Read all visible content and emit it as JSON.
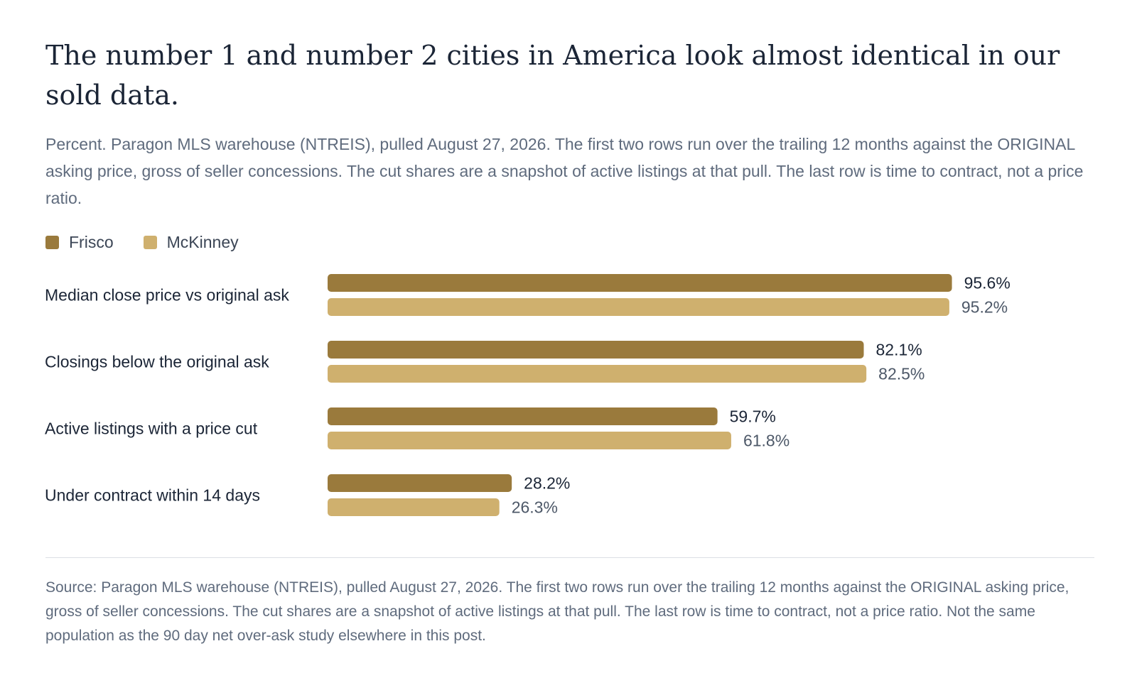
{
  "chart_data": {
    "type": "bar",
    "orientation": "horizontal",
    "title": "The number 1 and number 2 cities in America look almost identical in our sold data.",
    "subtitle": "Percent. Paragon MLS warehouse (NTREIS), pulled August 27, 2026. The first two rows run over the trailing 12 months against the ORIGINAL asking price, gross of seller concessions. The cut shares are a snapshot of active listings at that pull. The last row is time to contract, not a price ratio.",
    "categories": [
      "Median close price vs original ask",
      "Closings below the original ask",
      "Active listings with a price cut",
      "Under contract within 14 days"
    ],
    "series": [
      {
        "name": "Frisco",
        "color": "#9a7a3c",
        "values": [
          95.6,
          82.1,
          59.7,
          28.2
        ],
        "labels": [
          "95.6%",
          "82.1%",
          "59.7%",
          "28.2%"
        ]
      },
      {
        "name": "McKinney",
        "color": "#cfb06e",
        "values": [
          95.2,
          82.5,
          61.8,
          26.3
        ],
        "labels": [
          "95.2%",
          "82.5%",
          "61.8%",
          "26.3%"
        ]
      }
    ],
    "xlim": [
      0,
      100
    ],
    "grid": false,
    "legend": "top-left",
    "source": "Source: Paragon MLS warehouse (NTREIS), pulled August 27, 2026. The first two rows run over the trailing 12 months against the ORIGINAL asking price, gross of seller concessions. The cut shares are a snapshot of active listings at that pull. The last row is time to contract, not a price ratio. Not the same population as the 90 day net over-ask study elsewhere in this post."
  }
}
